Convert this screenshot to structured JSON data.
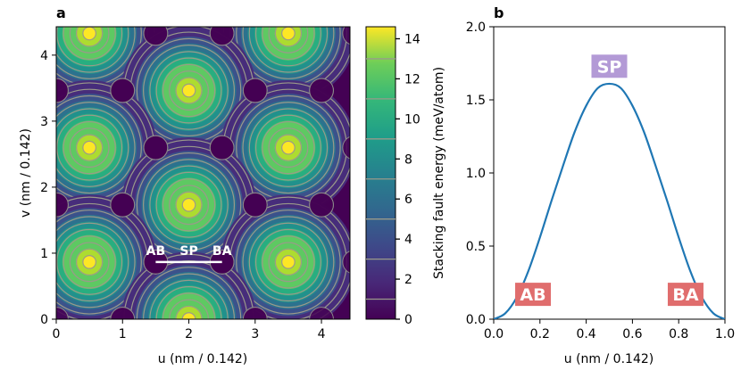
{
  "panels": {
    "a": "a",
    "b": "b"
  },
  "chart_data": [
    {
      "type": "heatmap",
      "panel": "a",
      "xlabel": "u (nm / 0.142)",
      "ylabel": "v (nm / 0.142)",
      "xlim": [
        0,
        4.43
      ],
      "ylim": [
        0,
        4.43
      ],
      "xticks": [
        "0",
        "1",
        "2",
        "3",
        "4"
      ],
      "yticks": [
        "0",
        "1",
        "2",
        "3",
        "4"
      ],
      "colorbar": {
        "label": "Stacking fault energy (meV/atom)",
        "range": [
          0,
          14.6
        ],
        "ticks": [
          "0",
          "2",
          "4",
          "6",
          "8",
          "10",
          "12",
          "14"
        ]
      },
      "peak_centers": [
        [
          0.5,
          4.33
        ],
        [
          3.5,
          4.33
        ],
        [
          2.0,
          3.464
        ],
        [
          0.5,
          2.598
        ],
        [
          3.5,
          2.598
        ],
        [
          2.0,
          1.732
        ],
        [
          0.5,
          0.866
        ],
        [
          3.5,
          0.866
        ],
        [
          2.0,
          0.0
        ]
      ],
      "peak_value": 14.6,
      "path": {
        "from": [
          1.5,
          0.866
        ],
        "to": [
          2.5,
          0.866
        ],
        "labels": [
          "AB",
          "SP",
          "BA"
        ]
      }
    },
    {
      "type": "line",
      "panel": "b",
      "xlabel": "u (nm / 0.142)",
      "ylabel": "",
      "xlim": [
        0,
        1.0
      ],
      "ylim": [
        0,
        2.0
      ],
      "xticks": [
        "0.0",
        "0.2",
        "0.4",
        "0.6",
        "0.8",
        "1.0"
      ],
      "yticks": [
        "0.0",
        "0.5",
        "1.0",
        "1.5",
        "2.0"
      ],
      "series": [
        {
          "color": "#1f77b4",
          "x": [
            0,
            0.05,
            0.1,
            0.15,
            0.2,
            0.25,
            0.3,
            0.35,
            0.4,
            0.45,
            0.5,
            0.55,
            0.6,
            0.65,
            0.7,
            0.75,
            0.8,
            0.85,
            0.9,
            0.95,
            1.0
          ],
          "y": [
            0,
            0.04,
            0.15,
            0.33,
            0.56,
            0.81,
            1.05,
            1.28,
            1.46,
            1.58,
            1.61,
            1.58,
            1.46,
            1.28,
            1.05,
            0.81,
            0.56,
            0.33,
            0.15,
            0.04,
            0
          ]
        }
      ],
      "annotations": [
        {
          "text": "SP",
          "x": 0.5,
          "y": 1.73,
          "color": "#b39ad6"
        },
        {
          "text": "AB",
          "x": 0.17,
          "y": 0.17,
          "color": "#e06d6d"
        },
        {
          "text": "BA",
          "x": 0.83,
          "y": 0.17,
          "color": "#e06d6d"
        }
      ]
    }
  ]
}
